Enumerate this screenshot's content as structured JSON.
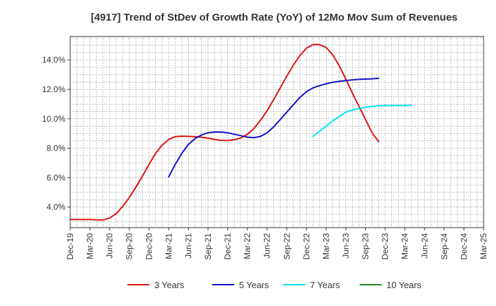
{
  "chart_data": {
    "type": "line",
    "title": "[4917]  Trend of StDev of Growth Rate (YoY) of 12Mo Mov Sum of Revenues",
    "xlabel": "",
    "ylabel": "",
    "ylim": [
      2.6,
      15.6
    ],
    "y_ticks": [
      4.0,
      6.0,
      8.0,
      10.0,
      12.0,
      14.0
    ],
    "y_tick_labels": [
      "4.0%",
      "6.0%",
      "8.0%",
      "10.0%",
      "12.0%",
      "14.0%"
    ],
    "x_tick_labels": [
      "Dec-19",
      "Mar-20",
      "Jun-20",
      "Sep-20",
      "Dec-20",
      "Mar-21",
      "Jun-21",
      "Sep-21",
      "Dec-21",
      "Mar-22",
      "Jun-22",
      "Sep-22",
      "Dec-22",
      "Mar-23",
      "Jun-23",
      "Sep-23",
      "Dec-23",
      "Mar-24",
      "Jun-24",
      "Sep-24",
      "Dec-24",
      "Mar-25"
    ],
    "grid": true,
    "legend_position": "bottom",
    "series": [
      {
        "name": "3 Years",
        "color": "#dd1111",
        "start_index": 0,
        "values": [
          3.15,
          3.15,
          3.15,
          3.15,
          3.13,
          3.12,
          3.25,
          3.55,
          4.05,
          4.65,
          5.35,
          6.1,
          6.9,
          7.65,
          8.2,
          8.6,
          8.78,
          8.82,
          8.8,
          8.78,
          8.75,
          8.68,
          8.6,
          8.53,
          8.52,
          8.58,
          8.7,
          8.95,
          9.35,
          9.9,
          10.55,
          11.3,
          12.1,
          12.9,
          13.65,
          14.3,
          14.8,
          15.05,
          15.05,
          14.85,
          14.35,
          13.6,
          12.7,
          11.75,
          10.85,
          9.95,
          9.05,
          8.45
        ]
      },
      {
        "name": "5 Years",
        "color": "#1111cc",
        "start_index": 15,
        "values": [
          6.05,
          6.9,
          7.65,
          8.25,
          8.65,
          8.9,
          9.05,
          9.1,
          9.1,
          9.05,
          8.95,
          8.85,
          8.75,
          8.72,
          8.8,
          9.05,
          9.45,
          9.95,
          10.45,
          10.95,
          11.45,
          11.85,
          12.1,
          12.25,
          12.38,
          12.48,
          12.55,
          12.6,
          12.65,
          12.68,
          12.7,
          12.72,
          12.75
        ]
      },
      {
        "name": "7 Years",
        "color": "#00e5ee",
        "start_index": 37,
        "values": [
          8.8,
          9.15,
          9.5,
          9.85,
          10.15,
          10.45,
          10.6,
          10.7,
          10.78,
          10.85,
          10.88,
          10.9,
          10.9,
          10.9,
          10.9,
          10.92
        ]
      },
      {
        "name": "10 Years",
        "color": "#228b22",
        "start_index": 0,
        "values": []
      }
    ]
  }
}
